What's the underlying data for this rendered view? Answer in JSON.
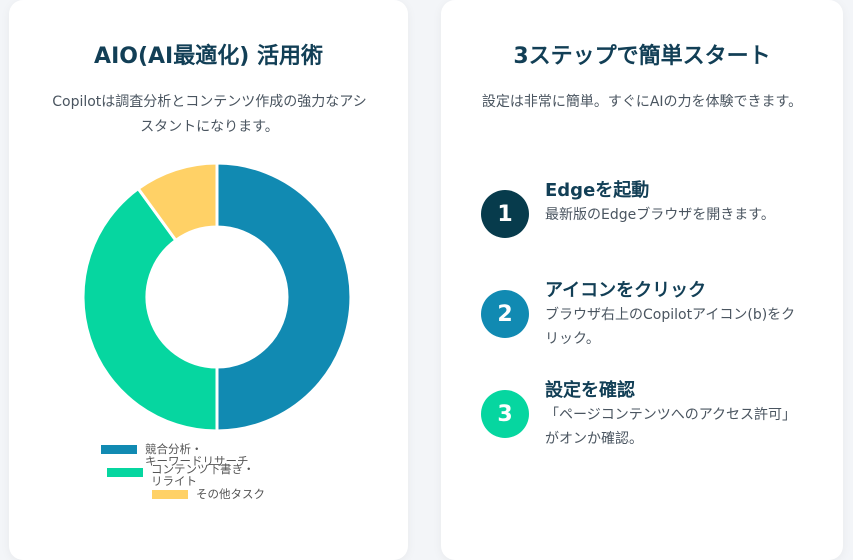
{
  "left_card": {
    "title": "AIO(AI最適化) 活用術",
    "subtitle": "Copilotは調査分析とコンテンツ作成の強力なアシスタントになります。"
  },
  "chart_data": {
    "type": "pie",
    "style": "donut",
    "title": "",
    "categories": [
      "競合分析・キーワードリサーチ",
      "コンテンツ下書き・リライト",
      "その他タスク"
    ],
    "legend_labels": [
      [
        "競合分析・",
        "キーワードリサーチ"
      ],
      [
        "コンテンツ下書き・",
        "リライト"
      ],
      [
        "その他タスク"
      ]
    ],
    "values": [
      50,
      40,
      10
    ],
    "colors": [
      "#118ab2",
      "#06d6a0",
      "#ffd166"
    ],
    "legend_position": "bottom"
  },
  "right_card": {
    "title": "3ステップで簡単スタート",
    "subtitle": "設定は非常に簡単。すぐにAIの力を体験できます。",
    "steps": [
      {
        "num": "1",
        "title": "Edgeを起動",
        "desc": "最新版のEdgeブラウザを開きます。",
        "color": "#073b4c"
      },
      {
        "num": "2",
        "title": "アイコンをクリック",
        "desc": "ブラウザ右上のCopilotアイコン(b)をクリック。",
        "color": "#118ab2"
      },
      {
        "num": "3",
        "title": "設定を確認",
        "desc": "「ページコンテンツへのアクセス許可」がオンか確認。",
        "color": "#06d6a0"
      }
    ]
  }
}
